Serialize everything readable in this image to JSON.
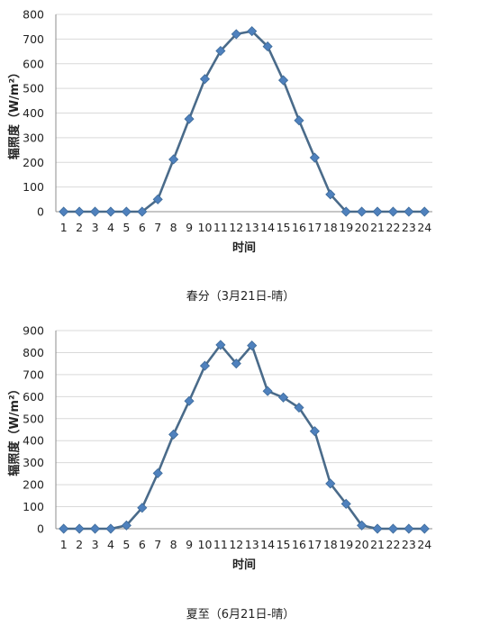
{
  "chart_data": [
    {
      "type": "line",
      "x": [
        1,
        2,
        3,
        4,
        5,
        6,
        7,
        8,
        9,
        10,
        11,
        12,
        13,
        14,
        15,
        16,
        17,
        18,
        19,
        20,
        21,
        22,
        23,
        24
      ],
      "y": [
        0,
        0,
        0,
        0,
        0,
        0,
        50,
        212,
        376,
        538,
        652,
        720,
        732,
        670,
        533,
        370,
        219,
        70,
        0,
        0,
        0,
        0,
        0,
        0
      ],
      "xlabel": "时间",
      "ylabel": "辐照度（W/m²）",
      "ylim": [
        0,
        800
      ],
      "yticks": [
        0,
        100,
        200,
        300,
        400,
        500,
        600,
        700,
        800
      ],
      "caption": "春分（3月21日-晴）",
      "grid": true,
      "series_color": "#4a6b8a",
      "marker_color": "#4f81bd",
      "grid_color": "#d9d9d9"
    },
    {
      "type": "line",
      "x": [
        1,
        2,
        3,
        4,
        5,
        6,
        7,
        8,
        9,
        10,
        11,
        12,
        13,
        14,
        15,
        16,
        17,
        18,
        19,
        20,
        21,
        22,
        23,
        24
      ],
      "y": [
        0,
        0,
        0,
        0,
        15,
        95,
        252,
        428,
        580,
        740,
        835,
        750,
        832,
        625,
        596,
        550,
        443,
        205,
        113,
        15,
        0,
        0,
        0,
        0
      ],
      "xlabel": "时间",
      "ylabel": "辐照度（W/m²）",
      "ylim": [
        0,
        900
      ],
      "yticks": [
        0,
        100,
        200,
        300,
        400,
        500,
        600,
        700,
        800,
        900
      ],
      "caption": "夏至（6月21日-晴）",
      "grid": true,
      "series_color": "#4a6b8a",
      "marker_color": "#4f81bd",
      "grid_color": "#d9d9d9"
    }
  ]
}
